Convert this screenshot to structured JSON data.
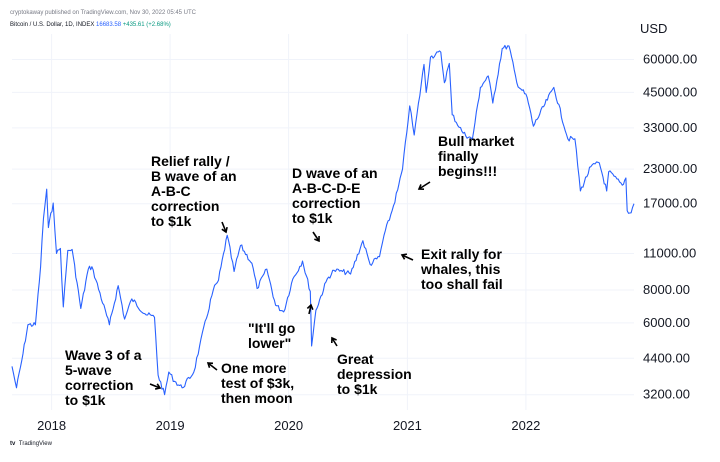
{
  "header": {
    "published": "cryptokaway published on TradingView.com, Nov 30, 2022 05:45 UTC",
    "symbol": "Bitcoin / U.S. Dollar, 1D, INDEX",
    "value": "16683.58",
    "change": "+435.61 (+2.68%)"
  },
  "footer": {
    "brand": "TradingView",
    "logo": "tv"
  },
  "colors": {
    "line": "#2962ff",
    "text": "#131722",
    "grid": "#f0f3fa"
  },
  "chart_data": {
    "type": "line",
    "scale": "log",
    "unit_label": "USD",
    "ylim": [
      2800,
      75000
    ],
    "xlim": [
      "2017-09-01",
      "2022-11-30"
    ],
    "x_ticks": [
      "2018",
      "2019",
      "2020",
      "2021",
      "2022"
    ],
    "y_ticks": [
      {
        "value": 3200,
        "label": "3200.00"
      },
      {
        "value": 4400,
        "label": "4400.00"
      },
      {
        "value": 6000,
        "label": "6000.00"
      },
      {
        "value": 8000,
        "label": "8000.00"
      },
      {
        "value": 11000,
        "label": "11000.00"
      },
      {
        "value": 17000,
        "label": "17000.00"
      },
      {
        "value": 23000,
        "label": "23000.00"
      },
      {
        "value": 33000,
        "label": "33000.00"
      },
      {
        "value": 45000,
        "label": "45000.00"
      },
      {
        "value": 60000,
        "label": "60000.00"
      }
    ],
    "series": [
      {
        "points": [
          [
            "2017-09-01",
            4100
          ],
          [
            "2017-09-15",
            3400
          ],
          [
            "2017-10-01",
            4300
          ],
          [
            "2017-10-20",
            5900
          ],
          [
            "2017-11-12",
            5900
          ],
          [
            "2017-11-28",
            9800
          ],
          [
            "2017-12-07",
            15000
          ],
          [
            "2017-12-17",
            19300
          ],
          [
            "2017-12-22",
            13800
          ],
          [
            "2018-01-06",
            17100
          ],
          [
            "2018-01-16",
            11000
          ],
          [
            "2018-01-28",
            11500
          ],
          [
            "2018-02-06",
            6900
          ],
          [
            "2018-02-20",
            11300
          ],
          [
            "2018-03-05",
            11400
          ],
          [
            "2018-04-01",
            6800
          ],
          [
            "2018-04-24",
            9600
          ],
          [
            "2018-05-05",
            9800
          ],
          [
            "2018-06-28",
            5900
          ],
          [
            "2018-07-25",
            8300
          ],
          [
            "2018-08-14",
            6200
          ],
          [
            "2018-09-05",
            7400
          ],
          [
            "2018-10-15",
            6500
          ],
          [
            "2018-11-14",
            6300
          ],
          [
            "2018-11-25",
            3800
          ],
          [
            "2018-12-15",
            3200
          ],
          [
            "2018-12-28",
            3900
          ],
          [
            "2019-01-15",
            3600
          ],
          [
            "2019-02-07",
            3400
          ],
          [
            "2019-03-15",
            3900
          ],
          [
            "2019-04-02",
            4900
          ],
          [
            "2019-05-14",
            8000
          ],
          [
            "2019-05-30",
            8700
          ],
          [
            "2019-06-26",
            12900
          ],
          [
            "2019-07-17",
            9400
          ],
          [
            "2019-08-06",
            11800
          ],
          [
            "2019-09-10",
            10100
          ],
          [
            "2019-09-26",
            8100
          ],
          [
            "2019-10-26",
            9600
          ],
          [
            "2019-11-22",
            7000
          ],
          [
            "2019-12-17",
            6600
          ],
          [
            "2020-01-14",
            8800
          ],
          [
            "2020-02-13",
            10300
          ],
          [
            "2020-03-08",
            7900
          ],
          [
            "2020-03-12",
            4900
          ],
          [
            "2020-03-25",
            6700
          ],
          [
            "2020-04-29",
            8800
          ],
          [
            "2020-05-20",
            9500
          ],
          [
            "2020-06-15",
            9400
          ],
          [
            "2020-07-10",
            9200
          ],
          [
            "2020-08-17",
            12300
          ],
          [
            "2020-09-08",
            10000
          ],
          [
            "2020-10-07",
            10700
          ],
          [
            "2020-10-21",
            12900
          ],
          [
            "2020-11-15",
            16000
          ],
          [
            "2020-12-02",
            19200
          ],
          [
            "2020-12-17",
            23000
          ],
          [
            "2021-01-08",
            40000
          ],
          [
            "2021-01-22",
            31000
          ],
          [
            "2021-02-21",
            57500
          ],
          [
            "2021-02-28",
            45000
          ],
          [
            "2021-03-13",
            61300
          ],
          [
            "2021-04-14",
            64000
          ],
          [
            "2021-04-25",
            49000
          ],
          [
            "2021-05-10",
            58000
          ],
          [
            "2021-05-19",
            37000
          ],
          [
            "2021-06-22",
            31500
          ],
          [
            "2021-07-20",
            29800
          ],
          [
            "2021-08-14",
            47000
          ],
          [
            "2021-09-07",
            52000
          ],
          [
            "2021-09-21",
            41000
          ],
          [
            "2021-10-20",
            66000
          ],
          [
            "2021-11-10",
            67500
          ],
          [
            "2021-12-04",
            49000
          ],
          [
            "2022-01-05",
            43000
          ],
          [
            "2022-01-24",
            33500
          ],
          [
            "2022-03-28",
            47000
          ],
          [
            "2022-05-10",
            30000
          ],
          [
            "2022-06-01",
            30000
          ],
          [
            "2022-06-18",
            19000
          ],
          [
            "2022-07-20",
            23500
          ],
          [
            "2022-08-15",
            24300
          ],
          [
            "2022-09-07",
            19000
          ],
          [
            "2022-09-13",
            22500
          ],
          [
            "2022-10-25",
            20000
          ],
          [
            "2022-11-05",
            21300
          ],
          [
            "2022-11-09",
            16000
          ],
          [
            "2022-11-21",
            15700
          ],
          [
            "2022-11-30",
            17000
          ]
        ]
      }
    ],
    "annotations": [
      {
        "lines": [
          "Relief rally /",
          "B wave of an",
          "A-B-C",
          "correction",
          "to $1k"
        ],
        "pos": [
          151,
          166
        ],
        "arrow": [
          [
            222,
            222
          ],
          [
            226,
            232
          ]
        ]
      },
      {
        "lines": [
          "D wave of an",
          "A-B-C-D-E",
          "correction",
          "to $1k"
        ],
        "pos": [
          292,
          178
        ],
        "arrow": [
          [
            313,
            232
          ],
          [
            319,
            241
          ]
        ]
      },
      {
        "lines": [
          "Bull market",
          "finally",
          "begins!!!"
        ],
        "pos": [
          438,
          146
        ],
        "arrow": [
          [
            430,
            182
          ],
          [
            419,
            189
          ]
        ]
      },
      {
        "lines": [
          "Exit rally for",
          "whales, this",
          "too shall fail"
        ],
        "pos": [
          421,
          259
        ],
        "arrow": [
          [
            413,
            260
          ],
          [
            402,
            255
          ]
        ]
      },
      {
        "lines": [
          "\"It'll go",
          "lower\""
        ],
        "pos": [
          248,
          333
        ],
        "arrow": [
          [
            309,
            314
          ],
          [
            311,
            305
          ]
        ]
      },
      {
        "lines": [
          "Wave 3 of a",
          "5-wave",
          "correction",
          "to $1k"
        ],
        "pos": [
          65,
          360
        ],
        "arrow": [
          [
            150,
            384
          ],
          [
            160,
            388
          ]
        ]
      },
      {
        "lines": [
          "One more",
          "test of $3k,",
          "then moon"
        ],
        "pos": [
          221,
          373
        ],
        "arrow": [
          [
            217,
            370
          ],
          [
            208,
            363
          ]
        ]
      },
      {
        "lines": [
          "Great",
          "depression",
          "to $1k"
        ],
        "pos": [
          337,
          364
        ],
        "arrow": [
          [
            337,
            346
          ],
          [
            332,
            338
          ]
        ]
      }
    ]
  }
}
